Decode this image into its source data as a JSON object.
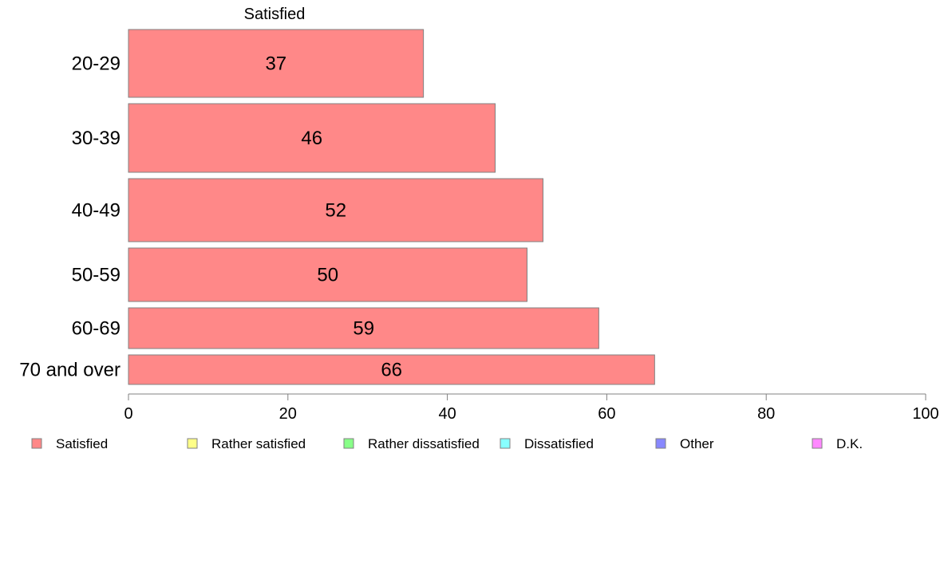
{
  "chart_data": {
    "type": "bar",
    "orientation": "horizontal",
    "series_title": "Satisfied",
    "categories": [
      "20-29",
      "30-39",
      "40-49",
      "50-59",
      "60-69",
      "70 and over"
    ],
    "series": [
      {
        "name": "Satisfied",
        "color": "#ff8888",
        "values": [
          37,
          46,
          52,
          50,
          59,
          66
        ],
        "labels": [
          "37",
          "46",
          "52",
          "50",
          "59",
          "66"
        ]
      }
    ],
    "xlim": [
      0,
      100
    ],
    "x_ticks": [
      0,
      20,
      40,
      60,
      80,
      100
    ],
    "x_tick_labels": [
      "0",
      "20",
      "40",
      "60",
      "80",
      "100"
    ],
    "grid": false,
    "legend_position": "bottom",
    "legend": [
      {
        "label": "Satisfied",
        "color": "#ff8888"
      },
      {
        "label": "Rather satisfied",
        "color": "#ffff88"
      },
      {
        "label": "Rather dissatisfied",
        "color": "#88ff88"
      },
      {
        "label": "Dissatisfied",
        "color": "#88ffff"
      },
      {
        "label": "Other",
        "color": "#8888ff"
      },
      {
        "label": "D.K.",
        "color": "#ff88ff"
      }
    ]
  }
}
